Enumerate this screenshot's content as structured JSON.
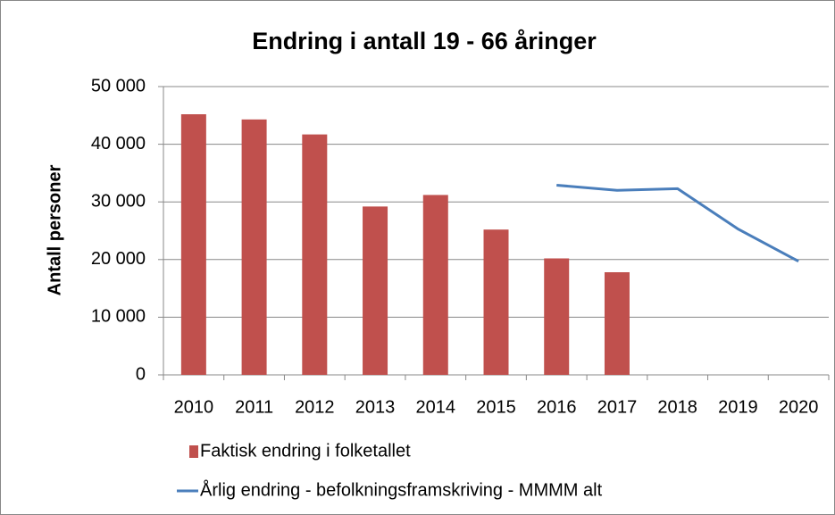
{
  "chart_data": {
    "type": "bar",
    "title": "Endring i antall 19 - 66 åringer",
    "y_label": "Antall personer",
    "categories": [
      "2010",
      "2011",
      "2012",
      "2013",
      "2014",
      "2015",
      "2016",
      "2017",
      "2018",
      "2019",
      "2020"
    ],
    "series": [
      {
        "name": "Faktisk endring i folketallet",
        "type": "bar",
        "color": "#c0504d",
        "values": [
          45200,
          44300,
          41700,
          29200,
          31200,
          25200,
          20200,
          17800,
          null,
          null,
          null
        ]
      },
      {
        "name": "Årlig endring - befolkningsframskriving - MMMM alt",
        "type": "line",
        "color": "#4a7ebb",
        "values": [
          null,
          null,
          null,
          null,
          null,
          null,
          32900,
          32000,
          32300,
          25300,
          19700
        ]
      }
    ],
    "ylim": [
      0,
      50000
    ],
    "yticks": [
      0,
      {
        "value": 10000,
        "label": "10 000"
      },
      {
        "value": 20000,
        "label": "20 000"
      },
      {
        "value": 30000,
        "label": "30 000"
      },
      {
        "value": 40000,
        "label": "40 000"
      },
      {
        "value": 50000,
        "label": "50 000"
      }
    ],
    "grid": true,
    "legend": "bottom"
  }
}
